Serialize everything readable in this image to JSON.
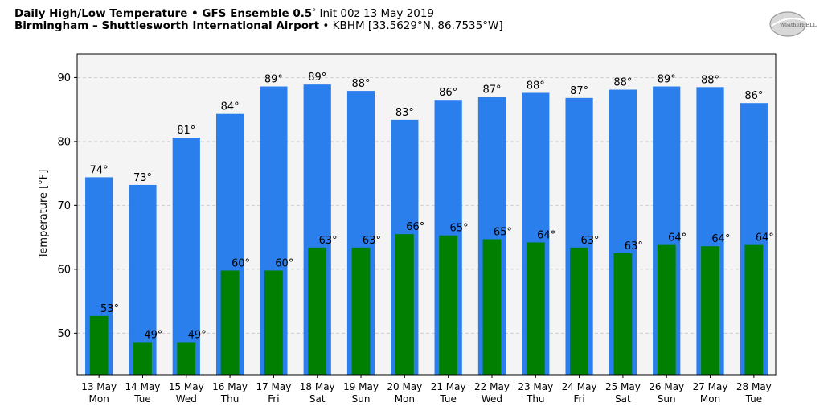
{
  "header": {
    "title_bold": "Daily High/Low Temperature • GFS Ensemble 0.5",
    "title_deg": "°",
    "title_rest": " Init 00z 13 May 2019",
    "location_bold": "Birmingham – Shuttlesworth International Airport",
    "location_rest": " • KBHM [33.5629°N, 86.7535°W]"
  },
  "logo": {
    "text": "WeatherBELL"
  },
  "chart_data": {
    "type": "bar",
    "ylabel": "Temperature [°F]",
    "ylim": [
      43.5,
      93.7
    ],
    "yticks": [
      50,
      60,
      70,
      80,
      90
    ],
    "grid": true,
    "categories": [
      {
        "date": "13 May",
        "day": "Mon"
      },
      {
        "date": "14 May",
        "day": "Tue"
      },
      {
        "date": "15 May",
        "day": "Wed"
      },
      {
        "date": "16 May",
        "day": "Thu"
      },
      {
        "date": "17 May",
        "day": "Fri"
      },
      {
        "date": "18 May",
        "day": "Sat"
      },
      {
        "date": "19 May",
        "day": "Sun"
      },
      {
        "date": "20 May",
        "day": "Mon"
      },
      {
        "date": "21 May",
        "day": "Tue"
      },
      {
        "date": "22 May",
        "day": "Wed"
      },
      {
        "date": "23 May",
        "day": "Thu"
      },
      {
        "date": "24 May",
        "day": "Fri"
      },
      {
        "date": "25 May",
        "day": "Sat"
      },
      {
        "date": "26 May",
        "day": "Sun"
      },
      {
        "date": "27 May",
        "day": "Mon"
      },
      {
        "date": "28 May",
        "day": "Tue"
      }
    ],
    "series": [
      {
        "key": "high",
        "color": "#2b7fed",
        "values": [
          74.4,
          73.2,
          80.6,
          84.3,
          88.6,
          88.9,
          87.9,
          83.4,
          86.5,
          87.0,
          87.6,
          86.8,
          88.1,
          88.6,
          88.5,
          86.0
        ],
        "labels": [
          "74°",
          "73°",
          "81°",
          "84°",
          "89°",
          "89°",
          "88°",
          "83°",
          "86°",
          "87°",
          "88°",
          "87°",
          "88°",
          "89°",
          "88°",
          "86°"
        ]
      },
      {
        "key": "low",
        "color": "#007f00",
        "values": [
          52.7,
          48.6,
          48.6,
          59.8,
          59.8,
          63.4,
          63.4,
          65.5,
          65.3,
          64.7,
          64.2,
          63.4,
          62.5,
          63.8,
          63.6,
          63.8
        ],
        "labels": [
          "53°",
          "49°",
          "49°",
          "60°",
          "60°",
          "63°",
          "63°",
          "66°",
          "65°",
          "65°",
          "64°",
          "63°",
          "63°",
          "64°",
          "64°",
          "64°"
        ]
      }
    ]
  }
}
